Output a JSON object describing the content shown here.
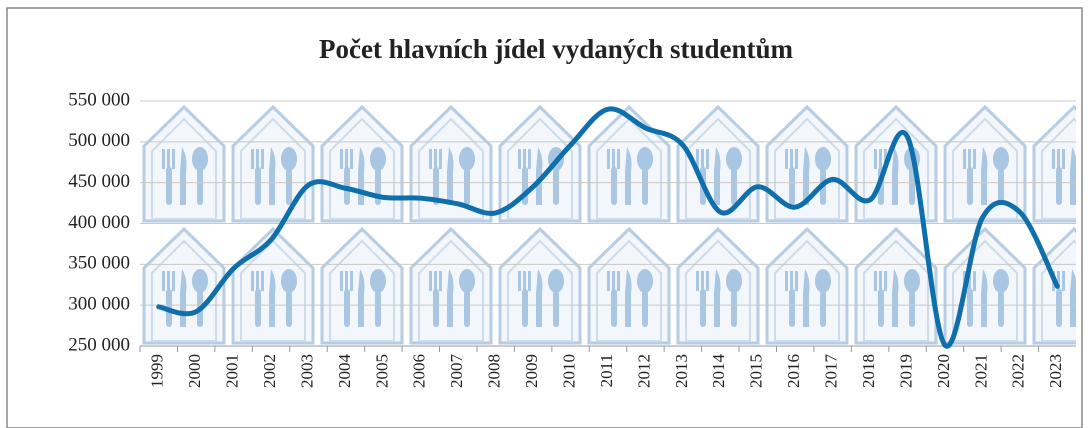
{
  "chart_data": {
    "type": "line",
    "title": "Počet hlavních jídel vydaných studentům",
    "categories": [
      "1999",
      "2000",
      "2001",
      "2002",
      "2003",
      "2004",
      "2005",
      "2006",
      "2007",
      "2008",
      "2009",
      "2010",
      "2011",
      "2012",
      "2013",
      "2014",
      "2015",
      "2016",
      "2017",
      "2018",
      "2019",
      "2020",
      "2021",
      "2022",
      "2023"
    ],
    "values": [
      298000,
      292000,
      345000,
      380000,
      447000,
      443000,
      432000,
      431000,
      424000,
      413000,
      445000,
      496000,
      540000,
      517000,
      496000,
      414000,
      445000,
      420000,
      454000,
      429000,
      506000,
      251000,
      407000,
      414000,
      323000
    ],
    "color": "#0e6fab",
    "ylim": [
      250000,
      550000
    ],
    "yticks": [
      {
        "value": 250000,
        "label": "250 000"
      },
      {
        "value": 300000,
        "label": "300 000"
      },
      {
        "value": 350000,
        "label": "350 000"
      },
      {
        "value": 400000,
        "label": "400 000"
      },
      {
        "value": 450000,
        "label": "450 000"
      },
      {
        "value": 500000,
        "label": "500 000"
      },
      {
        "value": 550000,
        "label": "550 000"
      }
    ],
    "grid": true,
    "smooth": true
  }
}
